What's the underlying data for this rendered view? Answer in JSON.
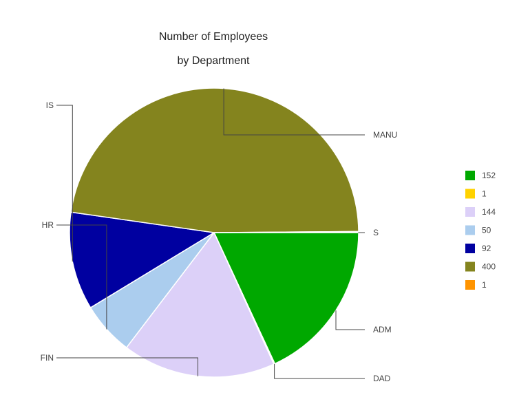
{
  "chart_data": {
    "type": "pie",
    "title_lines": [
      "Number of Employees",
      "by Department"
    ],
    "slices": [
      {
        "label": "ADM",
        "legend_label": "152",
        "value": 152,
        "color": "#00a800"
      },
      {
        "label": "DAD",
        "legend_label": "1",
        "value": 1,
        "color": "#ffd200"
      },
      {
        "label": "FIN",
        "legend_label": "144",
        "value": 144,
        "color": "#dcd0f8"
      },
      {
        "label": "HR",
        "legend_label": "50",
        "value": 50,
        "color": "#abcdee"
      },
      {
        "label": "IS",
        "legend_label": "92",
        "value": 92,
        "color": "#0000a0"
      },
      {
        "label": "MANU",
        "legend_label": "400",
        "value": 400,
        "color": "#84841e"
      },
      {
        "label": "S",
        "legend_label": "1",
        "value": 1,
        "color": "#ff9400"
      }
    ],
    "legend_position": "right",
    "direction": "clockwise",
    "start_angle": "east"
  }
}
